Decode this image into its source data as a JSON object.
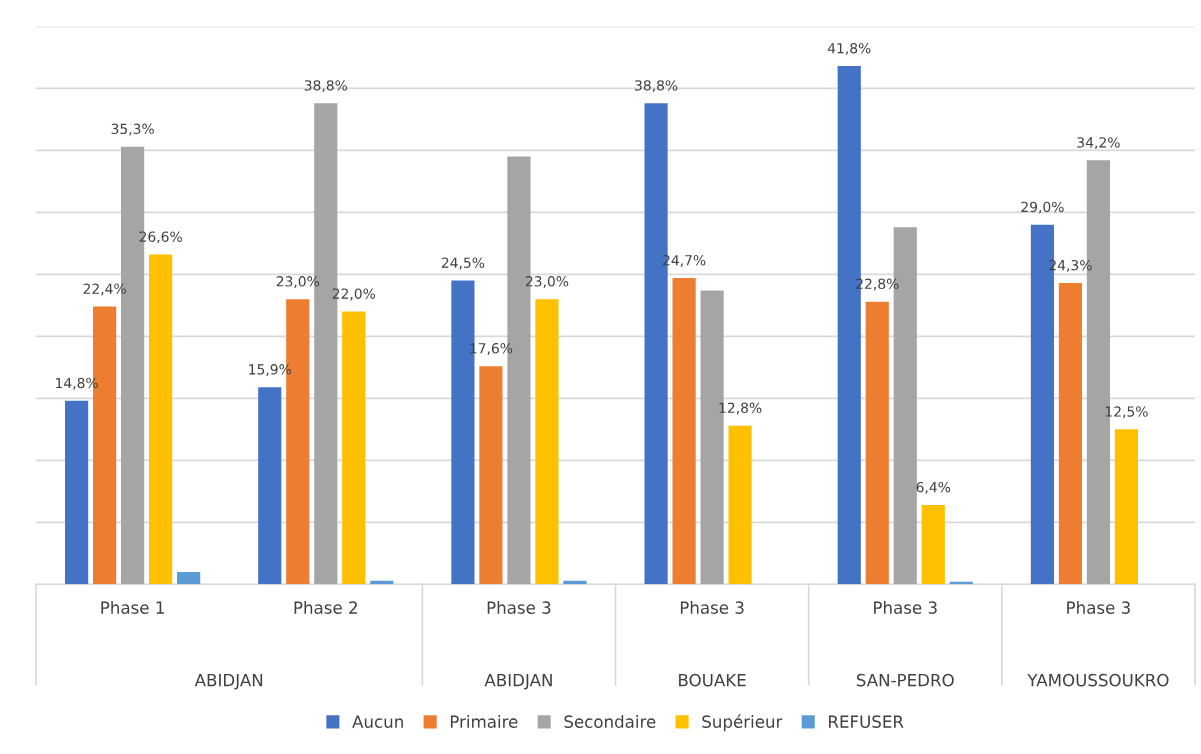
{
  "chart_data": {
    "type": "bar",
    "categories": [
      "Phase 1",
      "Phase 2",
      "Phase 3",
      "Phase 3",
      "Phase 3",
      "Phase 3"
    ],
    "annotations": [
      "ABIDJAN",
      "ABIDJAN",
      "BOUAKE",
      "SAN-PEDRO",
      "YAMOUSSOUKRO"
    ],
    "series": [
      {
        "name": "Aucun",
        "color": "#4472c4",
        "values": [
          14.8,
          15.9,
          24.5,
          38.8,
          41.8,
          29.0
        ],
        "value_labels": [
          "14,8%",
          "15,9%",
          "24,5%",
          "38,8%",
          "41,8%",
          "29,0%"
        ]
      },
      {
        "name": "Primaire",
        "color": "#ed7d31",
        "values": [
          22.4,
          23.0,
          17.6,
          24.7,
          22.8,
          24.3
        ],
        "value_labels": [
          "22,4%",
          "23,0%",
          "17,6%",
          "24,7%",
          "22,8%",
          "24,3%"
        ]
      },
      {
        "name": "Secondaire",
        "color": "#a5a5a5",
        "values": [
          35.3,
          38.8,
          34.5,
          23.7,
          28.8,
          34.2
        ],
        "value_labels": [
          "35,3%",
          "38,8%",
          null,
          null,
          null,
          "34,2%"
        ]
      },
      {
        "name": "Supérieur",
        "color": "#ffc000",
        "values": [
          26.6,
          22.0,
          23.0,
          12.8,
          6.4,
          12.5
        ],
        "value_labels": [
          "26,6%",
          "22,0%",
          "23,0%",
          "12,8%",
          "6,4%",
          "12,5%"
        ]
      },
      {
        "name": "REFUSER",
        "color": "#5b9bd5",
        "values": [
          1.0,
          0.3,
          0.3,
          null,
          0.2,
          null
        ]
      }
    ],
    "ylim": [
      0,
      45
    ],
    "yticks": [
      {
        "value": 0,
        "label": null
      },
      {
        "value": 5,
        "label": null
      },
      {
        "value": 10,
        "label": null
      },
      {
        "value": 15,
        "label": null
      },
      {
        "value": 20,
        "label": null
      },
      {
        "value": 25,
        "label": null
      },
      {
        "value": 30,
        "label": null
      },
      {
        "value": 35,
        "label": null
      },
      {
        "value": 40,
        "label": null
      },
      {
        "value": 45,
        "label": null
      }
    ],
    "tick_labels": "x",
    "grid": "y",
    "legend": "bottom"
  }
}
